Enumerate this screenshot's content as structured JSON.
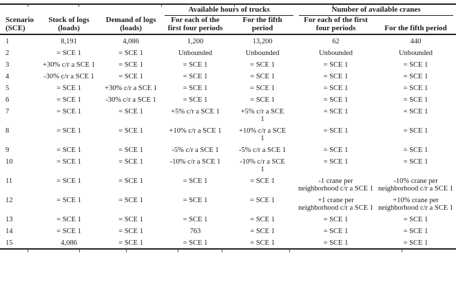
{
  "table": {
    "header": {
      "scenario": "Scenario (SCE)",
      "stock": "Stock of logs (loads)",
      "demand": "Demand of logs (loads)"
    },
    "groups": [
      {
        "label": "Available hours of trucks",
        "subcols": [
          "For each of the first four periods",
          "For the fifth period"
        ]
      },
      {
        "label": "Number of available cranes",
        "subcols": [
          "For each of the first four periods",
          "For the fifth period"
        ]
      }
    ],
    "rows": [
      [
        "1",
        "8,191",
        "4,086",
        "1,200",
        "13,200",
        "62",
        "440"
      ],
      [
        "2",
        "= SCE 1",
        "= SCE 1",
        "Unbounded",
        "Unbounded",
        "Unbounded",
        "Unbounded"
      ],
      [
        "3",
        "+30% c/r a SCE 1",
        "= SCE 1",
        "= SCE 1",
        "= SCE 1",
        "= SCE 1",
        "= SCE 1"
      ],
      [
        "4",
        "-30% c/r a SCE 1",
        "= SCE 1",
        "= SCE 1",
        "= SCE 1",
        "= SCE 1",
        "= SCE 1"
      ],
      [
        "5",
        "= SCE 1",
        "+30% c/r a SCE 1",
        "= SCE 1",
        "= SCE 1",
        "= SCE 1",
        "= SCE 1"
      ],
      [
        "6",
        "= SCE 1",
        "-30% c/r a SCE 1",
        "= SCE 1",
        "= SCE 1",
        "= SCE 1",
        "= SCE 1"
      ],
      [
        "7",
        "= SCE 1",
        "= SCE 1",
        "+5% c/r a SCE 1",
        "+5% c/r a SCE 1",
        "= SCE 1",
        "= SCE 1"
      ],
      [
        "8",
        "= SCE 1",
        "= SCE 1",
        "+10% c/r a SCE 1",
        "+10% c/r a SCE 1",
        "= SCE 1",
        "= SCE 1"
      ],
      [
        "9",
        "= SCE 1",
        "= SCE 1",
        "-5% c/r a SCE 1",
        "-5% c/r a SCE 1",
        "= SCE 1",
        "= SCE 1"
      ],
      [
        "10",
        "= SCE 1",
        "= SCE 1",
        "-10% c/r a SCE 1",
        "-10% c/r a SCE 1",
        "= SCE 1",
        "= SCE 1"
      ],
      [
        "11",
        "= SCE 1",
        "= SCE 1",
        "= SCE 1",
        "= SCE 1",
        "-1 crane per neighborhood c/r a SCE 1",
        "-10% crane per neighborhood c/r a SCE 1"
      ],
      [
        "12",
        "= SCE 1",
        "= SCE 1",
        "= SCE 1",
        "= SCE 1",
        "+1 crane per neighborhood c/r a SCE 1",
        "+10% crane per neighborhood c/r a SCE 1"
      ],
      [
        "13",
        "= SCE 1",
        "= SCE 1",
        "= SCE 1",
        "= SCE 1",
        "= SCE 1",
        "= SCE 1"
      ],
      [
        "14",
        "= SCE 1",
        "= SCE 1",
        "763",
        "= SCE 1",
        "= SCE 1",
        "= SCE 1"
      ],
      [
        "15",
        "4,086",
        "= SCE 1",
        "= SCE 1",
        "= SCE 1",
        "= SCE 1",
        "= SCE 1"
      ]
    ]
  }
}
